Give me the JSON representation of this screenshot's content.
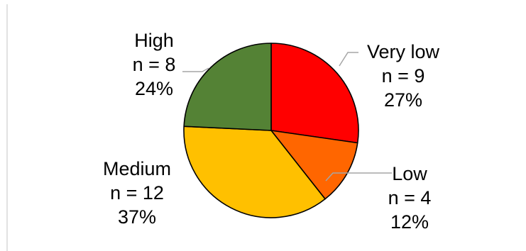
{
  "chart_data": {
    "type": "pie",
    "slices": [
      {
        "category": "Very low",
        "count_label": "n = 9",
        "percent_label": "27%",
        "value": 9,
        "color": "#ff0000"
      },
      {
        "category": "Low",
        "count_label": "n = 4",
        "percent_label": "12%",
        "value": 4,
        "color": "#ff6600"
      },
      {
        "category": "Medium",
        "count_label": "n = 12",
        "percent_label": "37%",
        "value": 12,
        "color": "#ffc000"
      },
      {
        "category": "High",
        "count_label": "n = 8",
        "percent_label": "24%",
        "value": 8,
        "color": "#548235"
      }
    ],
    "start_angle": "12 o'clock",
    "direction": "clockwise",
    "legend": "none",
    "label_line_color": "#a6a6a6",
    "border_color": "#d9d9d9"
  }
}
